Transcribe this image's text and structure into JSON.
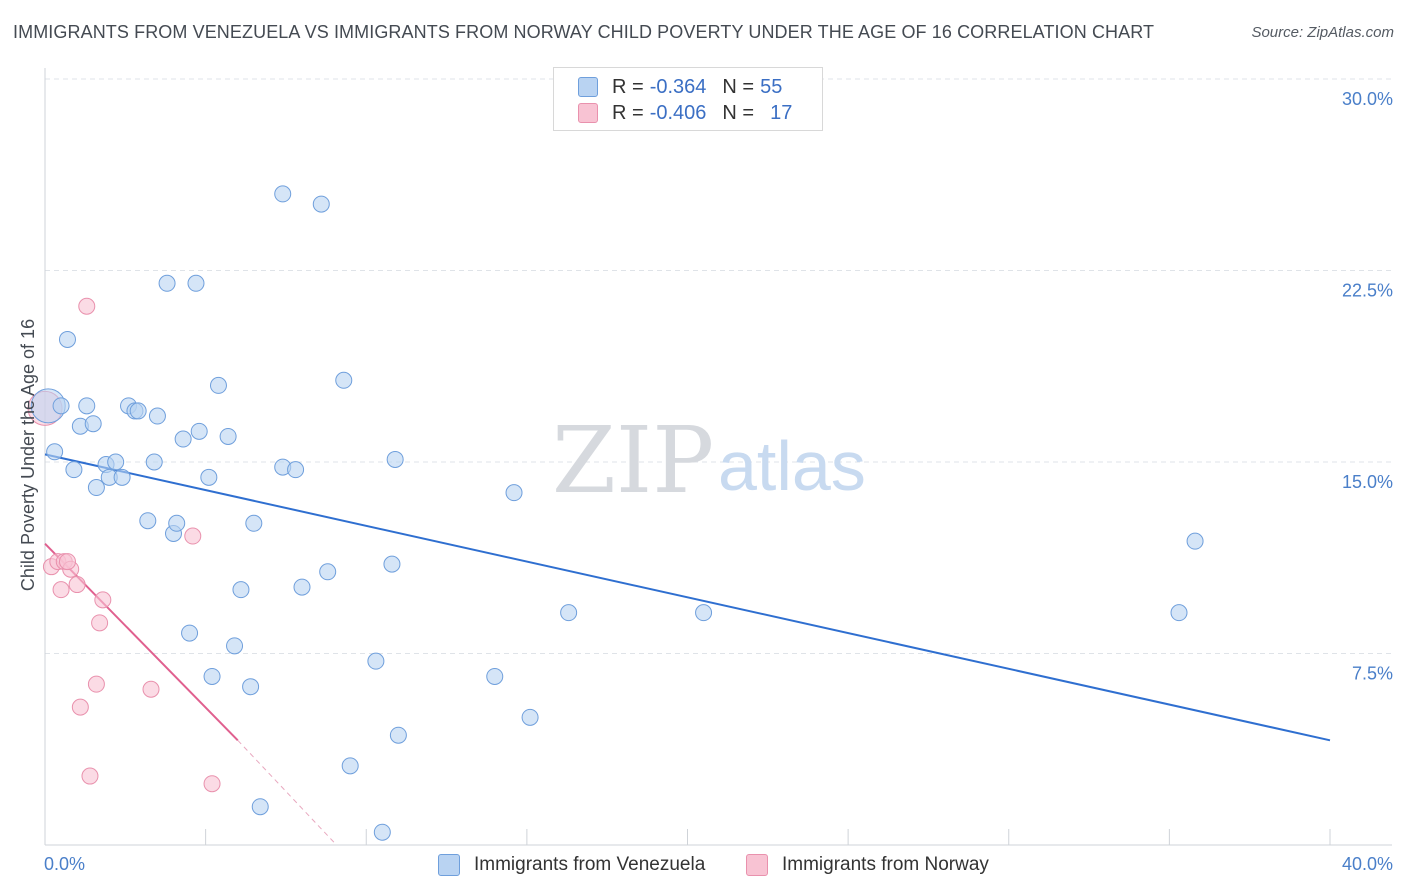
{
  "title": "IMMIGRANTS FROM VENEZUELA VS IMMIGRANTS FROM NORWAY CHILD POVERTY UNDER THE AGE OF 16 CORRELATION CHART",
  "source": "Source: ZipAtlas.com",
  "watermark": {
    "part1": "ZIP",
    "part2": "atlas"
  },
  "legend": {
    "rows": [
      {
        "r_label": "R =",
        "r_value": "-0.364",
        "n_label": "N =",
        "n_value": "55"
      },
      {
        "r_label": "R =",
        "r_value": "-0.406",
        "n_label": "N =",
        "n_value": "17"
      }
    ]
  },
  "colors": {
    "venezuela_fill": "#b9d3f2",
    "venezuela_stroke": "#6f9fdc",
    "venezuela_line": "#2f6fd0",
    "norway_fill": "#f8c3d3",
    "norway_stroke": "#e991ad",
    "norway_line": "#e0608f",
    "grid": "#dfe3e8",
    "tick_text": "#4a7fc9"
  },
  "chart_data": {
    "type": "scatter",
    "title": "IMMIGRANTS FROM VENEZUELA VS IMMIGRANTS FROM NORWAY CHILD POVERTY UNDER THE AGE OF 16 CORRELATION CHART",
    "xlabel": "",
    "ylabel": "Child Poverty Under the Age of 16",
    "xlim": [
      0,
      40
    ],
    "ylim": [
      0,
      30
    ],
    "x_tick_labels": [
      "0.0%",
      "40.0%"
    ],
    "y_ticks": [
      {
        "value": 7.5,
        "label": "7.5%"
      },
      {
        "value": 15.0,
        "label": "15.0%"
      },
      {
        "value": 22.5,
        "label": "22.5%"
      },
      {
        "value": 30.0,
        "label": "30.0%"
      }
    ],
    "series": [
      {
        "name": "Immigrants from Venezuela",
        "r": -0.364,
        "n": 55,
        "trend": {
          "x": [
            0,
            40
          ],
          "y": [
            15.3,
            4.1
          ]
        },
        "points": [
          {
            "x": 0.1,
            "y": 17.2,
            "big": true
          },
          {
            "x": 0.3,
            "y": 15.4
          },
          {
            "x": 0.5,
            "y": 17.2
          },
          {
            "x": 0.7,
            "y": 19.8
          },
          {
            "x": 0.9,
            "y": 14.7
          },
          {
            "x": 1.1,
            "y": 16.4
          },
          {
            "x": 1.3,
            "y": 17.2
          },
          {
            "x": 1.5,
            "y": 16.5
          },
          {
            "x": 1.6,
            "y": 14.0
          },
          {
            "x": 1.9,
            "y": 14.9
          },
          {
            "x": 2.0,
            "y": 14.4
          },
          {
            "x": 2.2,
            "y": 15.0
          },
          {
            "x": 2.4,
            "y": 14.4
          },
          {
            "x": 2.6,
            "y": 17.2
          },
          {
            "x": 2.8,
            "y": 17.0
          },
          {
            "x": 2.9,
            "y": 17.0
          },
          {
            "x": 3.2,
            "y": 12.7
          },
          {
            "x": 3.4,
            "y": 15.0
          },
          {
            "x": 3.5,
            "y": 16.8
          },
          {
            "x": 3.8,
            "y": 22.0
          },
          {
            "x": 4.0,
            "y": 12.2
          },
          {
            "x": 4.1,
            "y": 12.6
          },
          {
            "x": 4.3,
            "y": 15.9
          },
          {
            "x": 4.5,
            "y": 8.3
          },
          {
            "x": 4.7,
            "y": 22.0
          },
          {
            "x": 4.8,
            "y": 16.2
          },
          {
            "x": 5.1,
            "y": 14.4
          },
          {
            "x": 5.2,
            "y": 6.6
          },
          {
            "x": 5.4,
            "y": 18.0
          },
          {
            "x": 5.7,
            "y": 16.0
          },
          {
            "x": 5.9,
            "y": 7.8
          },
          {
            "x": 6.1,
            "y": 10.0
          },
          {
            "x": 6.4,
            "y": 6.2
          },
          {
            "x": 6.5,
            "y": 12.6
          },
          {
            "x": 6.7,
            "y": 1.5
          },
          {
            "x": 7.4,
            "y": 25.5
          },
          {
            "x": 7.4,
            "y": 14.8
          },
          {
            "x": 7.8,
            "y": 14.7
          },
          {
            "x": 8.0,
            "y": 10.1
          },
          {
            "x": 8.6,
            "y": 25.1
          },
          {
            "x": 8.8,
            "y": 10.7
          },
          {
            "x": 9.3,
            "y": 18.2
          },
          {
            "x": 9.5,
            "y": 3.1
          },
          {
            "x": 10.3,
            "y": 7.2
          },
          {
            "x": 10.5,
            "y": 0.5
          },
          {
            "x": 10.8,
            "y": 11.0
          },
          {
            "x": 10.9,
            "y": 15.1
          },
          {
            "x": 11.0,
            "y": 4.3
          },
          {
            "x": 14.0,
            "y": 6.6
          },
          {
            "x": 14.6,
            "y": 13.8
          },
          {
            "x": 15.1,
            "y": 5.0
          },
          {
            "x": 16.3,
            "y": 9.1
          },
          {
            "x": 20.5,
            "y": 9.1
          },
          {
            "x": 35.3,
            "y": 9.1
          },
          {
            "x": 35.8,
            "y": 11.9
          }
        ]
      },
      {
        "name": "Immigrants from Norway",
        "r": -0.406,
        "n": 17,
        "trend": {
          "x": [
            0,
            6.0
          ],
          "y": [
            11.8,
            4.1
          ]
        },
        "trend_dashed": {
          "x": [
            6.0,
            9.0
          ],
          "y": [
            4.1,
            0.1
          ]
        },
        "points": [
          {
            "x": 0.0,
            "y": 17.1,
            "big": true
          },
          {
            "x": 0.2,
            "y": 10.9
          },
          {
            "x": 0.4,
            "y": 11.1
          },
          {
            "x": 0.5,
            "y": 10.0
          },
          {
            "x": 0.6,
            "y": 11.1
          },
          {
            "x": 0.8,
            "y": 10.8
          },
          {
            "x": 0.7,
            "y": 11.1
          },
          {
            "x": 1.0,
            "y": 10.2
          },
          {
            "x": 1.1,
            "y": 5.4
          },
          {
            "x": 1.3,
            "y": 21.1
          },
          {
            "x": 1.4,
            "y": 2.7
          },
          {
            "x": 1.6,
            "y": 6.3
          },
          {
            "x": 1.7,
            "y": 8.7
          },
          {
            "x": 1.8,
            "y": 9.6
          },
          {
            "x": 3.3,
            "y": 6.1
          },
          {
            "x": 4.6,
            "y": 12.1
          },
          {
            "x": 5.2,
            "y": 2.4
          }
        ]
      }
    ]
  }
}
